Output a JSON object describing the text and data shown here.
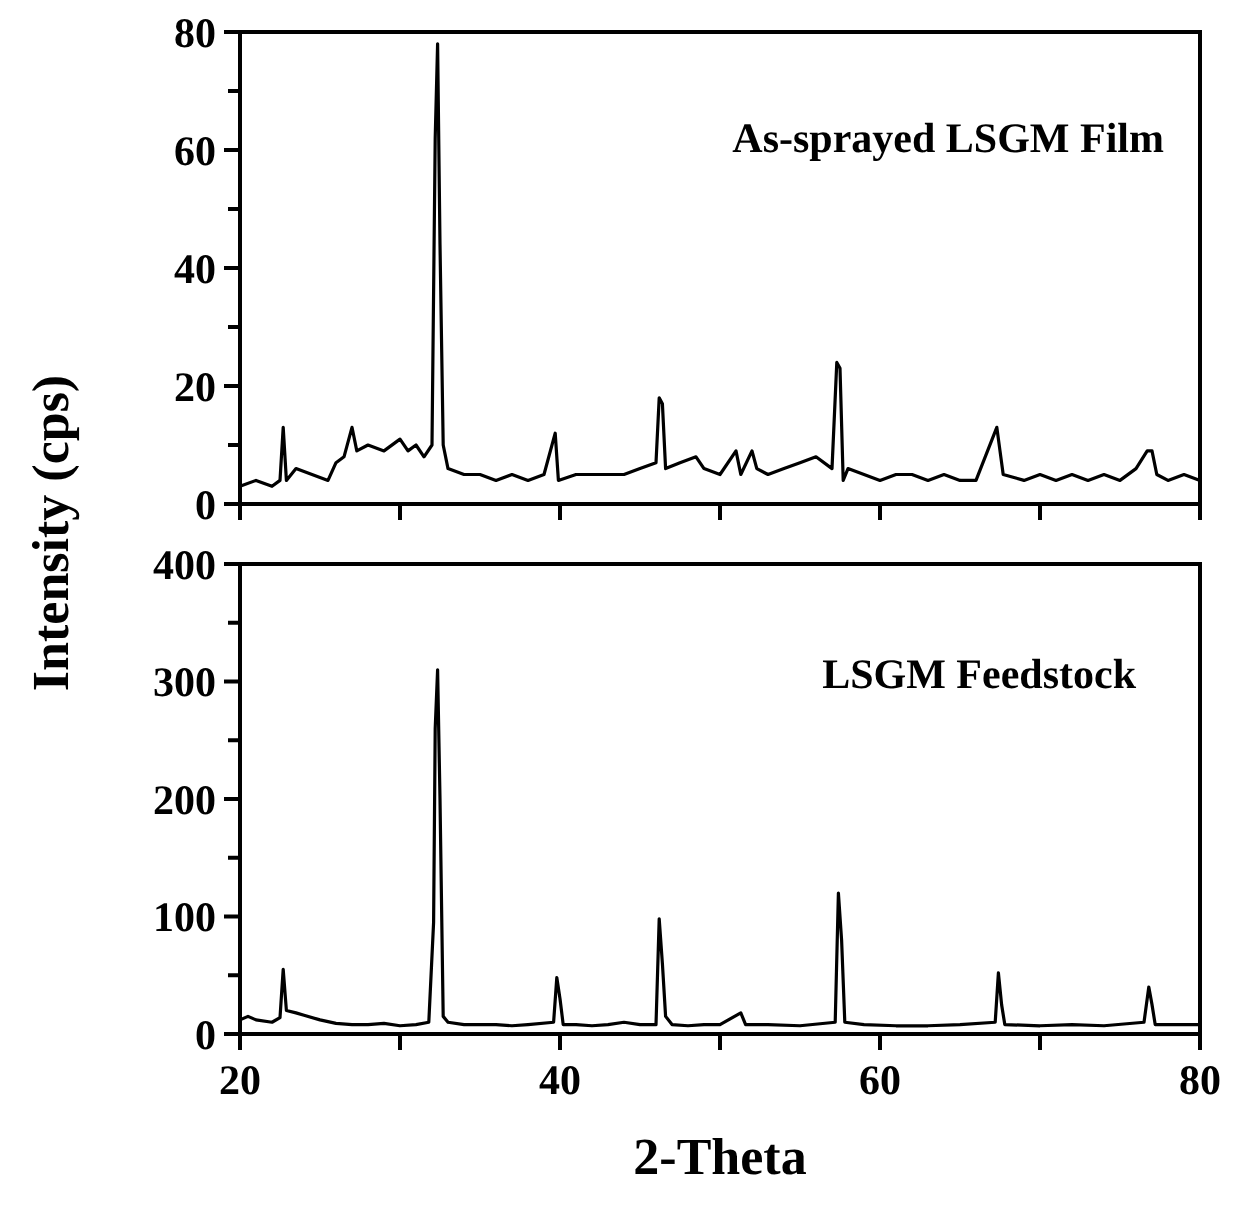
{
  "chart_data": [
    {
      "type": "line",
      "ylabel": "Intensity (cps)",
      "annotations": [
        "As-sprayed LSGM Film"
      ],
      "xlim": [
        20,
        80
      ],
      "xticks": [
        20,
        {
          "value": 30,
          "label": null
        },
        40,
        {
          "value": 50,
          "label": null
        },
        60,
        {
          "value": 70,
          "label": null
        },
        80
      ],
      "ylim": [
        0,
        80
      ],
      "yticks": [
        0,
        {
          "value": 10,
          "label": null
        },
        20,
        {
          "value": 30,
          "label": null
        },
        40,
        {
          "value": 50,
          "label": null
        },
        60,
        {
          "value": 70,
          "label": null
        },
        80
      ],
      "tick_labels": "y",
      "marker": "none",
      "line_style": "solid",
      "series": [
        {
          "color": "#000000",
          "x": [
            20,
            21,
            22,
            22.5,
            22.7,
            22.9,
            23.5,
            24.5,
            25.5,
            26,
            26.5,
            27,
            27.3,
            28,
            29,
            30,
            30.5,
            31,
            31.5,
            32,
            32.2,
            32.35,
            32.5,
            32.7,
            33,
            34,
            35,
            36,
            37,
            38,
            39,
            39.7,
            39.9,
            41,
            42,
            43,
            44,
            45,
            46,
            46.2,
            46.4,
            46.6,
            47.5,
            48.5,
            49,
            50,
            51,
            51.3,
            52,
            52.3,
            53,
            54,
            55,
            56,
            57,
            57.3,
            57.5,
            57.7,
            58,
            59,
            60,
            61,
            62,
            63,
            64,
            65,
            66,
            67.3,
            67.5,
            67.7,
            69,
            70,
            71,
            72,
            73,
            74,
            75,
            76,
            76.7,
            77,
            77.3,
            78,
            79,
            80
          ],
          "values": [
            3,
            4,
            3,
            4,
            13,
            4,
            6,
            5,
            4,
            7,
            8,
            13,
            9,
            10,
            9,
            11,
            9,
            10,
            8,
            10,
            62,
            78,
            44,
            10,
            6,
            5,
            5,
            4,
            5,
            4,
            5,
            12,
            4,
            5,
            5,
            5,
            5,
            6,
            7,
            18,
            17,
            6,
            7,
            8,
            6,
            5,
            9,
            5,
            9,
            6,
            5,
            6,
            7,
            8,
            6,
            24,
            23,
            4,
            6,
            5,
            4,
            5,
            5,
            4,
            5,
            4,
            4,
            13,
            9,
            5,
            4,
            5,
            4,
            5,
            4,
            5,
            4,
            6,
            9,
            9,
            5,
            4,
            5,
            4
          ]
        }
      ]
    },
    {
      "type": "line",
      "xlabel": "2-Theta",
      "annotations": [
        "LSGM Feedstock"
      ],
      "xlim": [
        20,
        80
      ],
      "xticks": [
        20,
        {
          "value": 30,
          "label": null
        },
        40,
        {
          "value": 50,
          "label": null
        },
        60,
        {
          "value": 70,
          "label": null
        },
        80
      ],
      "ylim": [
        0,
        400
      ],
      "yticks": [
        0,
        {
          "value": 50,
          "label": null
        },
        100,
        {
          "value": 150,
          "label": null
        },
        200,
        {
          "value": 250,
          "label": null
        },
        300,
        {
          "value": 350,
          "label": null
        },
        400
      ],
      "marker": "none",
      "line_style": "solid",
      "series": [
        {
          "color": "#000000",
          "x": [
            20,
            20.5,
            21,
            22,
            22.5,
            22.7,
            22.9,
            23.5,
            24,
            25,
            26,
            27,
            28,
            29,
            30,
            31,
            31.8,
            32.1,
            32.2,
            32.35,
            32.5,
            32.7,
            33,
            34,
            35,
            36,
            37,
            38,
            39.6,
            39.8,
            40,
            40.2,
            41,
            42,
            43,
            44,
            45,
            46,
            46.2,
            46.4,
            46.6,
            47,
            48,
            49,
            50,
            51.3,
            51.6,
            53,
            55,
            57.2,
            57.4,
            57.6,
            57.8,
            59,
            61,
            63,
            65,
            67.2,
            67.4,
            67.6,
            67.8,
            70,
            72,
            74,
            76.5,
            76.8,
            77,
            77.2,
            78,
            80
          ],
          "values": [
            12,
            15,
            12,
            10,
            14,
            55,
            20,
            18,
            16,
            12,
            9,
            8,
            8,
            9,
            7,
            8,
            10,
            95,
            260,
            310,
            200,
            15,
            10,
            8,
            8,
            8,
            7,
            8,
            10,
            48,
            30,
            8,
            8,
            7,
            8,
            10,
            8,
            8,
            98,
            60,
            15,
            8,
            7,
            8,
            8,
            18,
            8,
            8,
            7,
            10,
            120,
            80,
            10,
            8,
            7,
            7,
            8,
            10,
            52,
            25,
            8,
            7,
            8,
            7,
            10,
            40,
            25,
            8,
            8,
            8
          ]
        }
      ]
    }
  ]
}
